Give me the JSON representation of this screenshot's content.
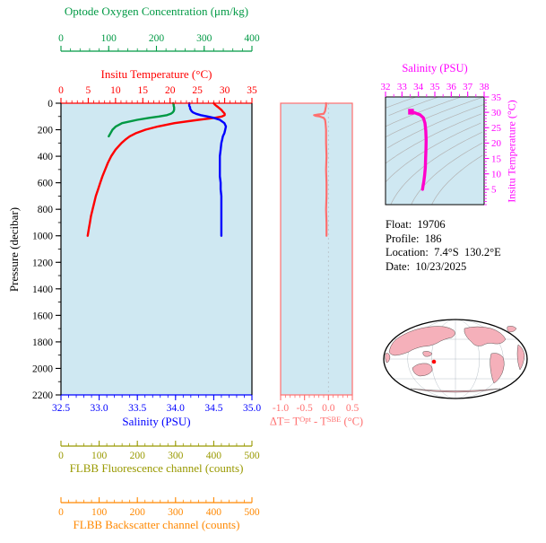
{
  "colors": {
    "panel_bg": "#cfe8f2",
    "green": "#009944",
    "red": "#ff0000",
    "blue": "#0000ff",
    "olive": "#999900",
    "orange": "#ff8800",
    "salmon": "#ff6f6f",
    "magenta": "#ff00ff",
    "contour": "#b3b3b3",
    "map_land": "#f5b0ba",
    "map_marker": "#ff0000"
  },
  "info_lines": [
    "Float:  19706",
    "Profile:  186",
    "Location:  7.4°S  130.2°E",
    "Date:  10/23/2025"
  ],
  "chart_data": [
    {
      "type": "line",
      "name": "profile-panel",
      "y_axis": {
        "label": "Pressure (decibar)",
        "lim": [
          0,
          2200
        ],
        "minor_step": 100,
        "tick_values": [
          0,
          200,
          400,
          600,
          800,
          1000,
          1200,
          1400,
          1600,
          1800,
          2000,
          2200
        ],
        "tick_labels": [
          "0",
          "200",
          "400",
          "600",
          "800",
          "1000",
          "1200",
          "1400",
          "1600",
          "1800",
          "2000",
          "2200"
        ]
      },
      "x_axes": {
        "oxygen": {
          "label": "Optode Oxygen Concentration (μm/kg)",
          "color": "#009944",
          "lim": [
            0,
            400
          ],
          "minor_step": 20,
          "tick_values": [
            0,
            100,
            200,
            300,
            400
          ],
          "tick_labels": [
            "0",
            "100",
            "200",
            "300",
            "400"
          ]
        },
        "temperature": {
          "label": "Insitu Temperature (°C)",
          "color": "#ff0000",
          "lim": [
            0,
            35
          ],
          "minor_step": 1,
          "tick_values": [
            0,
            5,
            10,
            15,
            20,
            25,
            30,
            35
          ],
          "tick_labels": [
            "0",
            "5",
            "10",
            "15",
            "20",
            "25",
            "30",
            "35"
          ]
        },
        "salinity": {
          "label": "Salinity (PSU)",
          "color": "#0000ff",
          "lim": [
            32.5,
            35.0
          ],
          "minor_step": 0.1,
          "tick_values": [
            32.5,
            33.0,
            33.5,
            34.0,
            34.5,
            35.0
          ],
          "tick_labels": [
            "32.5",
            "33.0",
            "33.5",
            "34.0",
            "34.5",
            "35.0"
          ]
        },
        "fluorescence": {
          "label": "FLBB Fluorescence channel (counts)",
          "color": "#999900",
          "lim": [
            0,
            500
          ],
          "minor_step": 20,
          "tick_values": [
            0,
            100,
            200,
            300,
            400,
            500
          ],
          "tick_labels": [
            "0",
            "100",
            "200",
            "300",
            "400",
            "500"
          ]
        },
        "backscatter": {
          "label": "FLBB Backscatter channel (counts)",
          "color": "#ff8800",
          "lim": [
            0,
            500
          ],
          "minor_step": 20,
          "tick_values": [
            0,
            100,
            200,
            300,
            400,
            500
          ],
          "tick_labels": [
            "0",
            "100",
            "200",
            "300",
            "400",
            "500"
          ]
        }
      },
      "series": [
        {
          "name": "temperature",
          "x_axis": "temperature",
          "color": "#ff0000",
          "pressure": [
            0,
            10,
            20,
            30,
            40,
            50,
            60,
            70,
            80,
            90,
            100,
            110,
            125,
            150,
            175,
            200,
            225,
            250,
            275,
            300,
            350,
            400,
            450,
            500,
            550,
            600,
            650,
            700,
            750,
            800,
            850,
            900,
            950,
            1000
          ],
          "values": [
            28.0,
            28.2,
            28.5,
            28.8,
            29.1,
            29.4,
            29.6,
            29.8,
            30.0,
            30.0,
            29.5,
            28.2,
            25.2,
            20.8,
            17.8,
            15.5,
            13.8,
            12.6,
            11.8,
            11.1,
            10.0,
            9.2,
            8.6,
            8.1,
            7.6,
            7.2,
            6.8,
            6.4,
            6.1,
            5.8,
            5.5,
            5.3,
            5.1,
            4.9
          ]
        },
        {
          "name": "salinity",
          "x_axis": "salinity",
          "color": "#0000ff",
          "pressure": [
            0,
            10,
            20,
            30,
            40,
            50,
            60,
            70,
            80,
            90,
            100,
            110,
            125,
            150,
            175,
            200,
            225,
            250,
            275,
            300,
            350,
            400,
            450,
            500,
            550,
            600,
            650,
            700,
            750,
            800,
            850,
            900,
            950,
            1000
          ],
          "values": [
            34.18,
            34.18,
            34.18,
            34.19,
            34.19,
            34.2,
            34.21,
            34.23,
            34.27,
            34.33,
            34.42,
            34.5,
            34.58,
            34.64,
            34.66,
            34.65,
            34.64,
            34.62,
            34.61,
            34.6,
            34.59,
            34.58,
            34.58,
            34.58,
            34.58,
            34.59,
            34.59,
            34.6,
            34.6,
            34.6,
            34.6,
            34.6,
            34.6,
            34.6
          ]
        },
        {
          "name": "oxygen",
          "x_axis": "oxygen",
          "color": "#009944",
          "pressure": [
            0,
            10,
            20,
            30,
            40,
            50,
            60,
            70,
            80,
            90,
            100,
            110,
            125,
            150,
            175,
            200,
            225,
            250
          ],
          "values": [
            235,
            236,
            236,
            237,
            237,
            237,
            236,
            234,
            230,
            222,
            205,
            185,
            160,
            128,
            115,
            108,
            104,
            100
          ]
        }
      ]
    },
    {
      "type": "line",
      "name": "delta-t-panel",
      "x_axis": {
        "label_parts": {
          "p1": "ΔT= T",
          "s1": "Opt",
          "p2": " - T",
          "s2": "SBE",
          "p3": " (°C)"
        },
        "color": "#ff6f6f",
        "lim": [
          -1.0,
          0.5
        ],
        "minor_step": 0.1,
        "tick_values": [
          -1.0,
          -0.5,
          0.0,
          0.5
        ],
        "tick_labels": [
          "-1.0",
          "-0.5",
          "0.0",
          "0.5"
        ]
      },
      "y_axis": {
        "lim": [
          0,
          2200
        ]
      },
      "zero_line": true,
      "series": [
        {
          "name": "delta-t",
          "color": "#ff6f6f",
          "pressure": [
            0,
            20,
            40,
            60,
            80,
            85,
            90,
            95,
            100,
            110,
            125,
            150,
            200,
            300,
            400,
            500,
            600,
            700,
            800,
            900,
            1000
          ],
          "values": [
            -0.05,
            -0.05,
            -0.06,
            -0.07,
            -0.1,
            -0.22,
            -0.3,
            -0.27,
            -0.18,
            -0.1,
            -0.07,
            -0.06,
            -0.05,
            -0.05,
            -0.04,
            -0.05,
            -0.04,
            -0.04,
            -0.05,
            -0.04,
            -0.04
          ]
        }
      ]
    },
    {
      "type": "line",
      "name": "ts-diagram",
      "x_axis": {
        "label": "Salinity (PSU)",
        "color": "#ff00ff",
        "lim": [
          32,
          38
        ],
        "minor_step": 0.5,
        "tick_values": [
          32,
          33,
          34,
          35,
          36,
          37,
          38
        ],
        "tick_labels": [
          "32",
          "33",
          "34",
          "35",
          "36",
          "37",
          "38"
        ]
      },
      "y_axis": {
        "label": "Insitu Temperature (°C)",
        "color": "#ff00ff",
        "lim": [
          0,
          35
        ],
        "minor_step": 1,
        "tick_values": [
          5,
          10,
          15,
          20,
          25,
          30,
          35
        ],
        "tick_labels": [
          "5",
          "10",
          "15",
          "20",
          "25",
          "30",
          "35"
        ]
      },
      "isopycnal_levels": [
        19,
        20,
        21,
        22,
        23,
        24,
        25,
        26,
        27,
        28
      ],
      "series": [
        {
          "name": "ts-curve",
          "color": "#ff00cc",
          "marker": "square",
          "points": [
            [
              33.55,
              30.2
            ],
            [
              33.8,
              29.8
            ],
            [
              34.1,
              29.2
            ],
            [
              34.3,
              28.2
            ],
            [
              34.4,
              26.5
            ],
            [
              34.45,
              24.0
            ],
            [
              34.47,
              21.0
            ],
            [
              34.46,
              18.0
            ],
            [
              34.44,
              15.0
            ],
            [
              34.42,
              12.0
            ],
            [
              34.38,
              9.5
            ],
            [
              34.33,
              7.5
            ],
            [
              34.28,
              6.0
            ],
            [
              34.25,
              5.0
            ]
          ]
        }
      ]
    }
  ]
}
